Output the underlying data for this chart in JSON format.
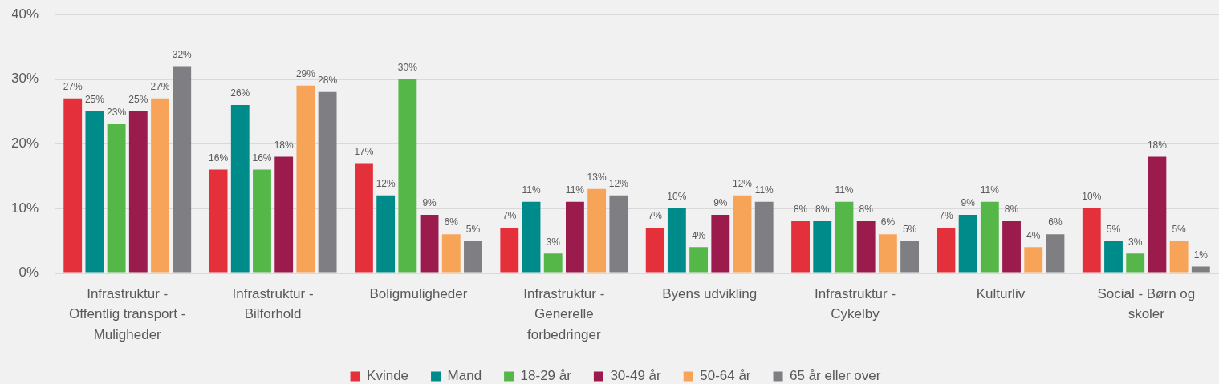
{
  "chart_data": {
    "type": "bar",
    "categories": [
      "Infrastruktur - Offentlig transport - Muligheder",
      "Infrastruktur - Bilforhold",
      "Boligmuligheder",
      "Infrastruktur - Generelle forbedringer",
      "Byens udvikling",
      "Infrastruktur - Cykelby",
      "Kulturliv",
      "Social - Børn og skoler"
    ],
    "series": [
      {
        "name": "Kvinde",
        "color": "#e3303b",
        "values": [
          27,
          16,
          17,
          7,
          7,
          8,
          7,
          10
        ],
        "value_labels": [
          "27%",
          "16%",
          "17%",
          "7%",
          "7%",
          "8%",
          "7%",
          "10%"
        ]
      },
      {
        "name": "Mand",
        "color": "#008b8b",
        "values": [
          25,
          26,
          12,
          11,
          10,
          8,
          9,
          5
        ],
        "value_labels": [
          "25%",
          "26%",
          "12%",
          "11%",
          "10%",
          "8%",
          "9%",
          "5%"
        ]
      },
      {
        "name": "18-29 år",
        "color": "#55b748",
        "values": [
          23,
          16,
          30,
          3,
          4,
          11,
          11,
          3
        ],
        "value_labels": [
          "23%",
          "16%",
          "30%",
          "3%",
          "4%",
          "11%",
          "11%",
          "3%"
        ]
      },
      {
        "name": "30-49 år",
        "color": "#9b1b4d",
        "values": [
          25,
          18,
          9,
          11,
          9,
          8,
          8,
          18
        ],
        "value_labels": [
          "25%",
          "18%",
          "9%",
          "11%",
          "9%",
          "8%",
          "8%",
          "18%"
        ]
      },
      {
        "name": "50-64 år",
        "color": "#f8a458",
        "values": [
          27,
          29,
          6,
          13,
          12,
          6,
          4,
          5
        ],
        "value_labels": [
          "27%",
          "29%",
          "6%",
          "13%",
          "12%",
          "6%",
          "4%",
          "5%"
        ]
      },
      {
        "name": "65 år eller over",
        "color": "#7f7f83",
        "values": [
          32,
          28,
          5,
          12,
          11,
          5,
          6,
          1
        ],
        "value_labels": [
          "32%",
          "28%",
          "5%",
          "12%",
          "11%",
          "5%",
          "6%",
          "1%"
        ]
      }
    ],
    "ylim": [
      0,
      40
    ],
    "yticks": [
      {
        "value": 0,
        "label": "0%"
      },
      {
        "value": 10,
        "label": "10%"
      },
      {
        "value": 20,
        "label": "20%"
      },
      {
        "value": 30,
        "label": "30%"
      },
      {
        "value": 40,
        "label": "40%"
      }
    ],
    "grid": "y",
    "legend": "bottom"
  }
}
